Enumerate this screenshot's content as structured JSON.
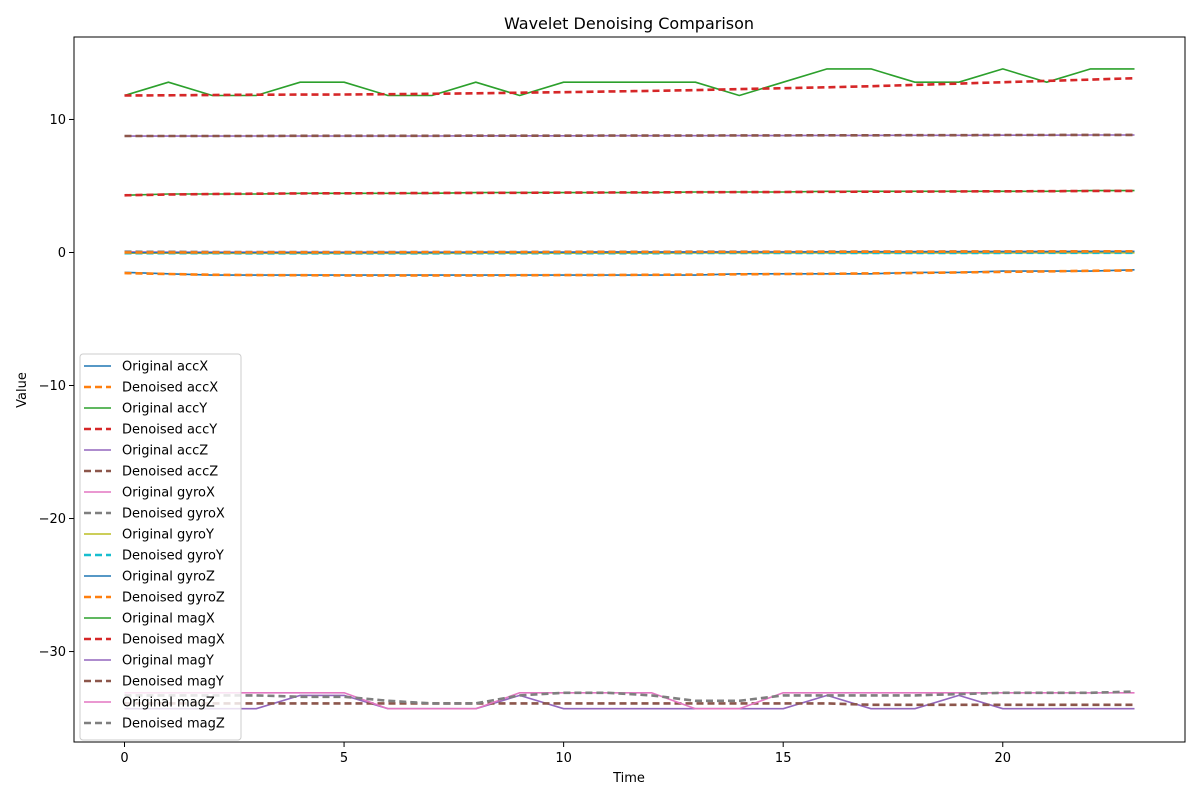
{
  "chart_data": {
    "type": "line",
    "title": "Wavelet Denoising Comparison",
    "xlabel": "Time",
    "ylabel": "Value",
    "xlim": [
      -1.15,
      24.15
    ],
    "ylim": [
      -36.8,
      16.2
    ],
    "xticks": [
      0,
      5,
      10,
      15,
      20
    ],
    "yticks": [
      -30,
      -20,
      -10,
      0,
      10
    ],
    "ytick_labels": [
      "−30",
      "−20",
      "−10",
      "0",
      "10"
    ],
    "grid": false,
    "legend_position": "lower-left",
    "x": [
      0,
      1,
      2,
      3,
      4,
      5,
      6,
      7,
      8,
      9,
      10,
      11,
      12,
      13,
      14,
      15,
      16,
      17,
      18,
      19,
      20,
      21,
      22,
      23
    ],
    "series": [
      {
        "name": "Original accX",
        "color": "#1f77b4",
        "style": "solid",
        "values": [
          -1.5,
          -1.6,
          -1.7,
          -1.7,
          -1.7,
          -1.7,
          -1.7,
          -1.7,
          -1.7,
          -1.7,
          -1.7,
          -1.7,
          -1.7,
          -1.7,
          -1.6,
          -1.6,
          -1.6,
          -1.6,
          -1.5,
          -1.5,
          -1.4,
          -1.4,
          -1.4,
          -1.3
        ]
      },
      {
        "name": "Denoised accX",
        "color": "#ff7f0e",
        "style": "dashed",
        "values": [
          -1.55,
          -1.62,
          -1.68,
          -1.7,
          -1.71,
          -1.72,
          -1.72,
          -1.72,
          -1.72,
          -1.71,
          -1.7,
          -1.69,
          -1.68,
          -1.66,
          -1.64,
          -1.62,
          -1.6,
          -1.57,
          -1.54,
          -1.5,
          -1.46,
          -1.42,
          -1.38,
          -1.35
        ]
      },
      {
        "name": "Original accY",
        "color": "#2ca02c",
        "style": "solid",
        "values": [
          11.8,
          12.8,
          11.8,
          11.8,
          12.8,
          12.8,
          11.8,
          11.8,
          12.8,
          11.8,
          12.8,
          12.8,
          12.8,
          12.8,
          11.8,
          12.8,
          13.8,
          13.8,
          12.8,
          12.8,
          13.8,
          12.8,
          13.8,
          13.8
        ]
      },
      {
        "name": "Denoised accY",
        "color": "#d62728",
        "style": "dashed",
        "values": [
          11.8,
          11.82,
          11.84,
          11.86,
          11.87,
          11.88,
          11.9,
          11.93,
          11.97,
          12.01,
          12.05,
          12.1,
          12.15,
          12.21,
          12.28,
          12.35,
          12.42,
          12.5,
          12.6,
          12.7,
          12.8,
          12.9,
          13.0,
          13.1
        ]
      },
      {
        "name": "Original accZ",
        "color": "#9467bd",
        "style": "solid",
        "values": [
          8.75,
          8.75,
          8.75,
          8.76,
          8.76,
          8.76,
          8.76,
          8.76,
          8.77,
          8.77,
          8.77,
          8.78,
          8.78,
          8.78,
          8.79,
          8.79,
          8.8,
          8.8,
          8.81,
          8.81,
          8.82,
          8.82,
          8.83,
          8.83
        ]
      },
      {
        "name": "Denoised accZ",
        "color": "#8c564b",
        "style": "dashed",
        "values": [
          8.76,
          8.76,
          8.76,
          8.76,
          8.77,
          8.77,
          8.77,
          8.77,
          8.78,
          8.78,
          8.78,
          8.79,
          8.79,
          8.79,
          8.8,
          8.8,
          8.81,
          8.81,
          8.82,
          8.82,
          8.83,
          8.83,
          8.84,
          8.84
        ]
      },
      {
        "name": "Original gyroX",
        "color": "#e377c2",
        "style": "solid",
        "values": [
          0.05,
          0.04,
          0.03,
          0.03,
          0.03,
          0.03,
          0.03,
          0.03,
          0.04,
          0.04,
          0.04,
          0.05,
          0.05,
          0.05,
          0.06,
          0.06,
          0.06,
          0.07,
          0.07,
          0.07,
          0.08,
          0.08,
          0.08,
          0.09
        ]
      },
      {
        "name": "Denoised gyroX",
        "color": "#7f7f7f",
        "style": "dashed",
        "values": [
          0.06,
          0.05,
          0.04,
          0.03,
          0.03,
          0.03,
          0.03,
          0.04,
          0.04,
          0.04,
          0.05,
          0.05,
          0.05,
          0.06,
          0.06,
          0.06,
          0.07,
          0.07,
          0.07,
          0.08,
          0.08,
          0.08,
          0.09,
          0.09
        ]
      },
      {
        "name": "Original gyroY",
        "color": "#bcbd22",
        "style": "solid",
        "values": [
          -0.05,
          -0.05,
          -0.06,
          -0.06,
          -0.06,
          -0.06,
          -0.06,
          -0.06,
          -0.05,
          -0.05,
          -0.05,
          -0.05,
          -0.05,
          -0.04,
          -0.04,
          -0.04,
          -0.04,
          -0.03,
          -0.03,
          -0.03,
          -0.03,
          -0.02,
          -0.02,
          -0.02
        ]
      },
      {
        "name": "Denoised gyroY",
        "color": "#17becf",
        "style": "dashed",
        "values": [
          -0.05,
          -0.05,
          -0.05,
          -0.06,
          -0.06,
          -0.06,
          -0.06,
          -0.06,
          -0.05,
          -0.05,
          -0.05,
          -0.05,
          -0.05,
          -0.04,
          -0.04,
          -0.04,
          -0.04,
          -0.03,
          -0.03,
          -0.03,
          -0.03,
          -0.02,
          -0.02,
          -0.02
        ]
      },
      {
        "name": "Original gyroZ",
        "color": "#1f77b4",
        "style": "solid",
        "values": [
          0.0,
          0.0,
          0.0,
          0.0,
          0.0,
          0.01,
          0.01,
          0.01,
          0.02,
          0.02,
          0.02,
          0.03,
          0.03,
          0.03,
          0.04,
          0.04,
          0.05,
          0.05,
          0.06,
          0.06,
          0.07,
          0.07,
          0.08,
          0.08
        ]
      },
      {
        "name": "Denoised gyroZ",
        "color": "#ff7f0e",
        "style": "dashed",
        "values": [
          0.0,
          0.0,
          0.0,
          0.0,
          0.01,
          0.01,
          0.01,
          0.02,
          0.02,
          0.02,
          0.03,
          0.03,
          0.03,
          0.04,
          0.04,
          0.05,
          0.05,
          0.06,
          0.06,
          0.07,
          0.07,
          0.08,
          0.08,
          0.09
        ]
      },
      {
        "name": "Original magX",
        "color": "#2ca02c",
        "style": "solid",
        "values": [
          4.3,
          4.4,
          4.4,
          4.4,
          4.45,
          4.45,
          4.45,
          4.45,
          4.5,
          4.5,
          4.5,
          4.5,
          4.5,
          4.55,
          4.55,
          4.55,
          4.6,
          4.6,
          4.6,
          4.6,
          4.6,
          4.6,
          4.65,
          4.65
        ]
      },
      {
        "name": "Denoised magX",
        "color": "#d62728",
        "style": "dashed",
        "values": [
          4.3,
          4.36,
          4.4,
          4.42,
          4.44,
          4.45,
          4.46,
          4.47,
          4.48,
          4.49,
          4.5,
          4.51,
          4.52,
          4.53,
          4.54,
          4.55,
          4.56,
          4.57,
          4.58,
          4.59,
          4.6,
          4.61,
          4.62,
          4.63
        ]
      },
      {
        "name": "Original magY",
        "color": "#9467bd",
        "style": "solid",
        "values": [
          -34.3,
          -34.3,
          -34.3,
          -34.3,
          -33.3,
          -33.3,
          -34.3,
          -34.3,
          -34.3,
          -33.3,
          -34.3,
          -34.3,
          -34.3,
          -34.3,
          -34.3,
          -34.3,
          -33.3,
          -34.3,
          -34.3,
          -33.3,
          -34.3,
          -34.3,
          -34.3,
          -34.3
        ]
      },
      {
        "name": "Denoised magY",
        "color": "#8c564b",
        "style": "dashed",
        "values": [
          -33.9,
          -33.9,
          -33.9,
          -33.9,
          -33.9,
          -33.9,
          -33.9,
          -33.9,
          -33.9,
          -33.9,
          -33.9,
          -33.9,
          -33.9,
          -33.9,
          -33.9,
          -33.9,
          -33.9,
          -34.0,
          -34.0,
          -34.0,
          -34.0,
          -34.0,
          -34.0,
          -34.0
        ]
      },
      {
        "name": "Original magZ",
        "color": "#e377c2",
        "style": "solid",
        "values": [
          -33.1,
          -33.1,
          -33.1,
          -33.1,
          -33.1,
          -33.1,
          -34.3,
          -34.3,
          -34.3,
          -33.1,
          -33.1,
          -33.1,
          -33.1,
          -34.3,
          -34.3,
          -33.1,
          -33.1,
          -33.1,
          -33.1,
          -33.1,
          -33.1,
          -33.1,
          -33.1,
          -33.1
        ]
      },
      {
        "name": "Denoised magZ",
        "color": "#7f7f7f",
        "style": "dashed",
        "values": [
          -33.3,
          -33.3,
          -33.3,
          -33.3,
          -33.4,
          -33.4,
          -33.7,
          -33.9,
          -33.9,
          -33.3,
          -33.1,
          -33.1,
          -33.3,
          -33.7,
          -33.7,
          -33.3,
          -33.3,
          -33.3,
          -33.3,
          -33.2,
          -33.1,
          -33.1,
          -33.1,
          -33.0
        ]
      }
    ]
  }
}
